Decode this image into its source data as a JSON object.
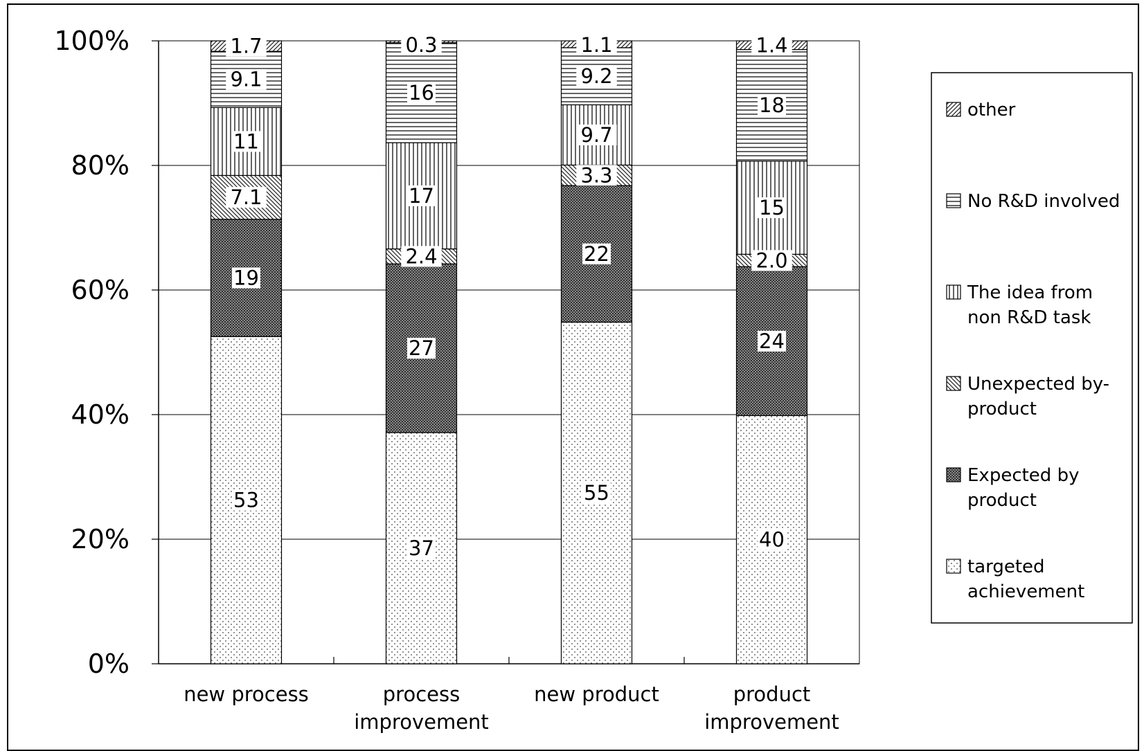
{
  "chart_data": {
    "type": "bar",
    "stacked": true,
    "percent_stacked": true,
    "categories": [
      [
        "new process"
      ],
      [
        "process",
        "improvement"
      ],
      [
        "new product"
      ],
      [
        "product",
        "improvement"
      ]
    ],
    "series": [
      {
        "name": "targeted achievement",
        "legend_lines": [
          "targeted",
          "achievement"
        ],
        "pattern": "dots",
        "values": [
          53,
          37,
          55,
          40
        ],
        "labels": [
          "53",
          "37",
          "55",
          "40"
        ]
      },
      {
        "name": "Expected by product",
        "legend_lines": [
          "Expected by",
          "product"
        ],
        "pattern": "darkgrid",
        "values": [
          19,
          27,
          22,
          24
        ],
        "labels": [
          "19",
          "27",
          "22",
          "24"
        ]
      },
      {
        "name": "Unexpected by-product",
        "legend_lines": [
          "Unexpected by-",
          "product"
        ],
        "pattern": "backdiag",
        "values": [
          7.1,
          2.4,
          3.3,
          2.0
        ],
        "labels": [
          "7.1",
          "2.4",
          "3.3",
          "2.0"
        ]
      },
      {
        "name": "The idea  from non R&D task",
        "legend_lines": [
          "The idea  from",
          "non R&D task"
        ],
        "pattern": "vlines",
        "values": [
          11,
          17,
          9.7,
          15
        ],
        "labels": [
          "11",
          "17",
          "9.7",
          "15"
        ]
      },
      {
        "name": "No R&D involved",
        "legend_lines": [
          "No R&D involved"
        ],
        "pattern": "hlines",
        "values": [
          9.1,
          16,
          9.2,
          18
        ],
        "labels": [
          "9.1",
          "16",
          "9.2",
          "18"
        ]
      },
      {
        "name": "other",
        "legend_lines": [
          "other"
        ],
        "pattern": "fwddiag",
        "values": [
          1.7,
          0.3,
          1.1,
          1.4
        ],
        "labels": [
          "1.7",
          "0.3",
          "1.1",
          "1.4"
        ]
      }
    ],
    "yticks": [
      "0%",
      "20%",
      "40%",
      "60%",
      "80%",
      "100%"
    ],
    "ylim": [
      0,
      100
    ],
    "grid": true,
    "legend_position": "right",
    "title": "",
    "xlabel": "",
    "ylabel": ""
  }
}
